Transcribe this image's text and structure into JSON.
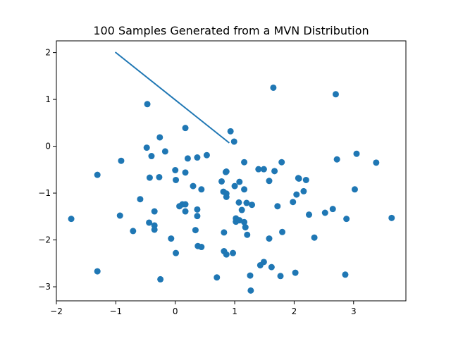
{
  "chart_data": {
    "type": "scatter",
    "title": "100 Samples Generated from a MVN Distribution",
    "xlabel": "",
    "ylabel": "",
    "xlim": [
      -2.0,
      3.88
    ],
    "ylim": [
      -3.3,
      2.25
    ],
    "xticks": [
      -2,
      -1,
      0,
      1,
      2,
      3
    ],
    "yticks": [
      -3,
      -2,
      -1,
      0,
      1,
      2
    ],
    "xtick_labels": [
      "−2",
      "−1",
      "0",
      "1",
      "2",
      "3"
    ],
    "ytick_labels": [
      "−3",
      "−2",
      "−1",
      "0",
      "1",
      "2"
    ],
    "grid": false,
    "legend": "none",
    "point_color": "#1f77b4",
    "line_color": "#1f77b4",
    "line": {
      "x": [
        -1.0,
        0.9
      ],
      "y": [
        2.0,
        0.08
      ]
    },
    "points": [
      [
        -1.75,
        -1.55
      ],
      [
        -1.31,
        -0.61
      ],
      [
        -1.31,
        -2.67
      ],
      [
        -0.91,
        -0.31
      ],
      [
        -0.93,
        -1.48
      ],
      [
        -0.71,
        -1.81
      ],
      [
        -0.59,
        -1.13
      ],
      [
        -0.47,
        0.9
      ],
      [
        -0.48,
        -0.03
      ],
      [
        -0.4,
        -0.21
      ],
      [
        -0.43,
        -0.67
      ],
      [
        -0.44,
        -1.63
      ],
      [
        -0.35,
        -1.39
      ],
      [
        -0.35,
        -1.69
      ],
      [
        -0.35,
        -1.78
      ],
      [
        -0.26,
        0.19
      ],
      [
        -0.27,
        -0.66
      ],
      [
        -0.25,
        -2.84
      ],
      [
        -0.17,
        -0.11
      ],
      [
        -0.07,
        -1.97
      ],
      [
        0.0,
        -0.51
      ],
      [
        0.01,
        -0.72
      ],
      [
        0.01,
        -2.28
      ],
      [
        0.07,
        -1.28
      ],
      [
        0.12,
        -1.24
      ],
      [
        0.17,
        -1.24
      ],
      [
        0.17,
        0.39
      ],
      [
        0.17,
        -0.56
      ],
      [
        0.17,
        -1.39
      ],
      [
        0.21,
        -0.26
      ],
      [
        0.3,
        -0.85
      ],
      [
        0.34,
        -1.79
      ],
      [
        0.37,
        -0.24
      ],
      [
        0.37,
        -1.35
      ],
      [
        0.37,
        -1.49
      ],
      [
        0.38,
        -2.13
      ],
      [
        0.44,
        -2.15
      ],
      [
        0.44,
        -0.92
      ],
      [
        0.53,
        -0.19
      ],
      [
        0.7,
        -2.8
      ],
      [
        0.78,
        -0.75
      ],
      [
        0.81,
        -0.97
      ],
      [
        0.82,
        -1.84
      ],
      [
        0.82,
        -2.24
      ],
      [
        0.85,
        -0.55
      ],
      [
        0.86,
        -0.54
      ],
      [
        0.86,
        -1.01
      ],
      [
        0.86,
        -1.08
      ],
      [
        0.86,
        -2.31
      ],
      [
        0.93,
        0.32
      ],
      [
        0.97,
        -2.28
      ],
      [
        0.99,
        0.1
      ],
      [
        1.0,
        -0.85
      ],
      [
        1.02,
        -1.54
      ],
      [
        1.02,
        -1.61
      ],
      [
        1.07,
        -1.2
      ],
      [
        1.08,
        -0.76
      ],
      [
        1.12,
        -1.36
      ],
      [
        1.16,
        -0.34
      ],
      [
        1.16,
        -0.92
      ],
      [
        1.16,
        -1.62
      ],
      [
        1.18,
        -1.73
      ],
      [
        1.2,
        -1.21
      ],
      [
        1.21,
        -1.89
      ],
      [
        1.26,
        -2.76
      ],
      [
        1.27,
        -3.08
      ],
      [
        1.29,
        -1.25
      ],
      [
        1.4,
        -0.49
      ],
      [
        1.43,
        -2.54
      ],
      [
        1.49,
        -0.49
      ],
      [
        1.49,
        -2.47
      ],
      [
        1.58,
        -0.74
      ],
      [
        1.58,
        -1.97
      ],
      [
        1.62,
        -2.58
      ],
      [
        1.65,
        1.25
      ],
      [
        1.67,
        -0.53
      ],
      [
        1.72,
        -1.28
      ],
      [
        1.77,
        -2.77
      ],
      [
        1.79,
        -0.34
      ],
      [
        1.8,
        -1.83
      ],
      [
        1.98,
        -1.19
      ],
      [
        2.02,
        -2.7
      ],
      [
        2.04,
        -1.03
      ],
      [
        2.07,
        -0.68
      ],
      [
        2.08,
        -0.69
      ],
      [
        2.16,
        -0.96
      ],
      [
        2.2,
        -0.72
      ],
      [
        2.25,
        -1.46
      ],
      [
        2.34,
        -1.95
      ],
      [
        2.52,
        -1.42
      ],
      [
        2.65,
        -1.34
      ],
      [
        2.7,
        1.11
      ],
      [
        2.72,
        -0.28
      ],
      [
        2.86,
        -2.74
      ],
      [
        2.88,
        -1.55
      ],
      [
        3.02,
        -0.92
      ],
      [
        3.05,
        -0.16
      ],
      [
        3.38,
        -0.35
      ],
      [
        3.64,
        -1.53
      ],
      [
        1.08,
        -1.58
      ]
    ]
  }
}
